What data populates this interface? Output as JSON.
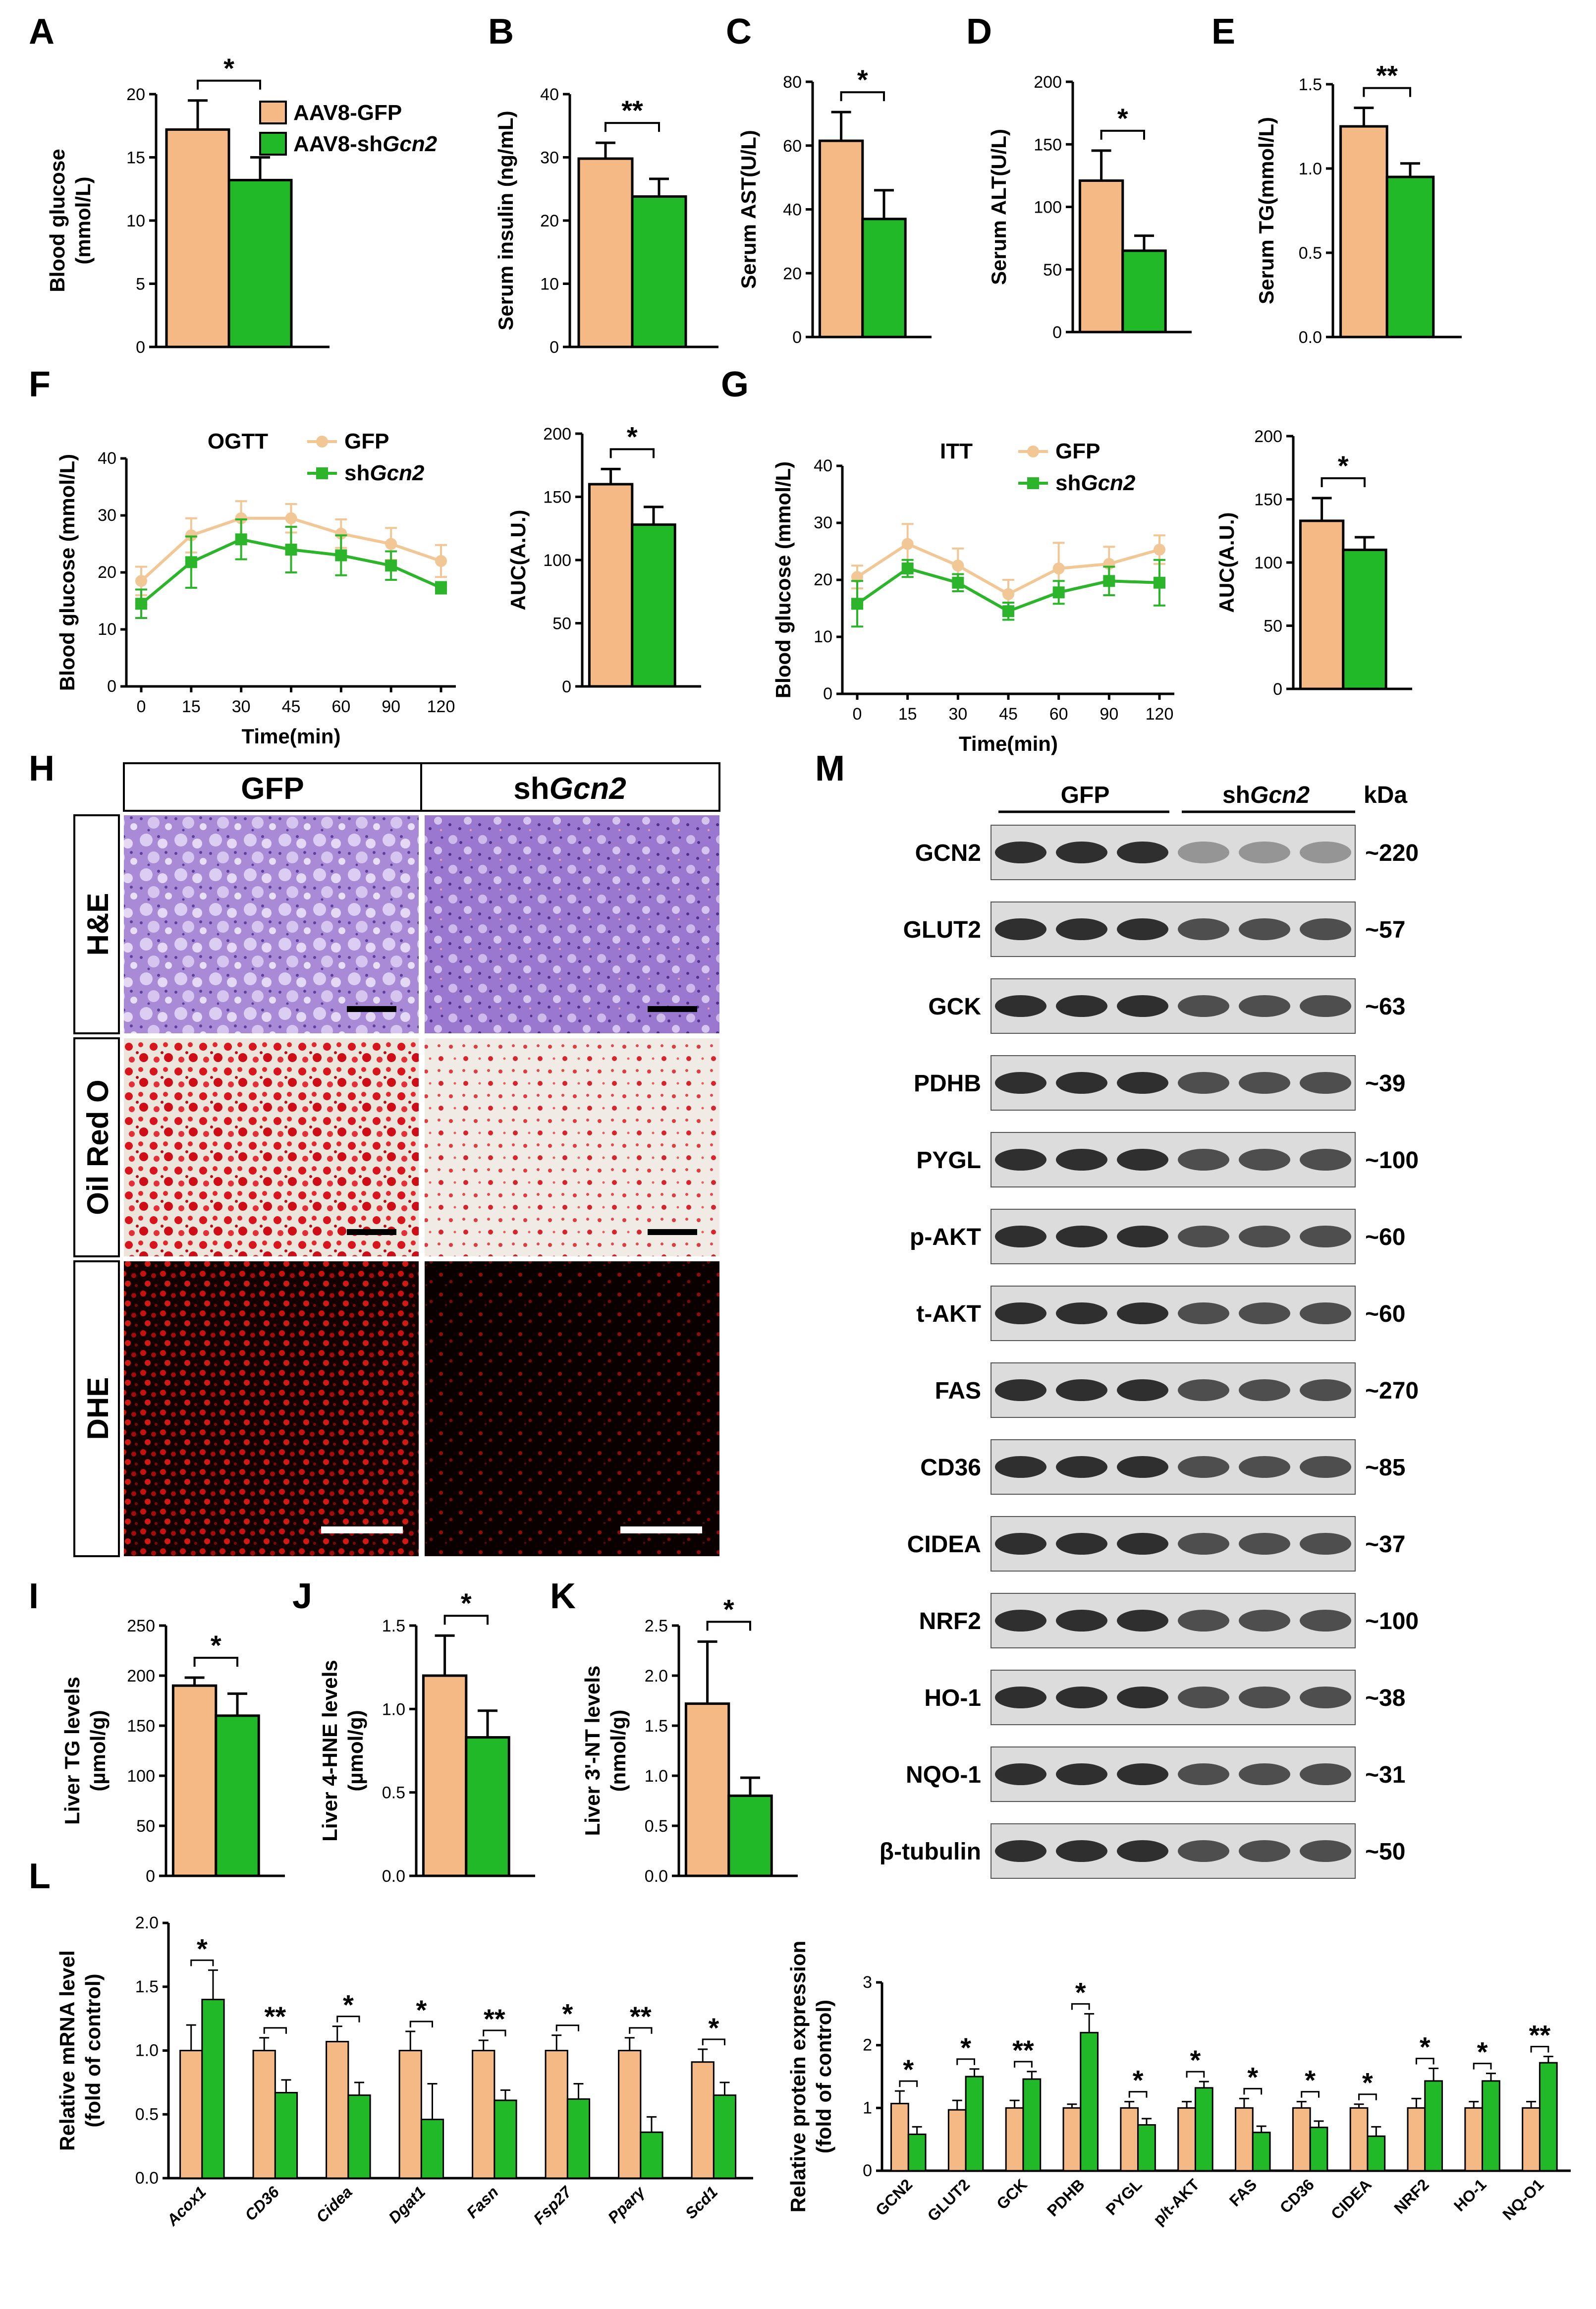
{
  "panel_labels": [
    "A",
    "B",
    "C",
    "D",
    "E",
    "F",
    "G",
    "H",
    "I",
    "J",
    "K",
    "L",
    "M"
  ],
  "colors": {
    "gfp": "#f5b985",
    "gfp_line": "#f1c795",
    "sh": "#21b927",
    "sh_line": "#2cb52a",
    "edge": "#000000"
  },
  "legend": {
    "gfp": "AAV8-GFP",
    "sh_prefix": "AAV8-sh",
    "sh_gene": "Gcn2"
  },
  "line_legend": {
    "gfp": "GFP",
    "sh_prefix": "sh",
    "sh_gene": "Gcn2"
  },
  "bars": [
    {
      "id": "A",
      "ylabel": [
        "Blood glucose",
        "(mmol/L)"
      ],
      "ylim": [
        0,
        20
      ],
      "ticks": [
        "0",
        "5",
        "10",
        "15",
        "20"
      ],
      "values": [
        17.2,
        13.2
      ],
      "errors": [
        2.3,
        1.8
      ],
      "sig": "*"
    },
    {
      "id": "B",
      "ylabel": [
        "Serum insulin (ng/mL)"
      ],
      "ylim": [
        0,
        40
      ],
      "ticks": [
        "0",
        "10",
        "20",
        "30",
        "40"
      ],
      "values": [
        29.8,
        23.8
      ],
      "errors": [
        2.5,
        2.8
      ],
      "sig": "**"
    },
    {
      "id": "C",
      "ylabel": [
        "Serum AST(U/L)"
      ],
      "ylim": [
        0,
        80
      ],
      "ticks": [
        "0",
        "20",
        "40",
        "60",
        "80"
      ],
      "values": [
        61.5,
        37.0
      ],
      "errors": [
        9.0,
        9.0
      ],
      "sig": "*"
    },
    {
      "id": "D",
      "ylabel": [
        "Serum ALT(U/L)"
      ],
      "ylim": [
        0,
        200
      ],
      "ticks": [
        "0",
        "50",
        "100",
        "150",
        "200"
      ],
      "values": [
        121,
        65
      ],
      "errors": [
        24,
        12
      ],
      "sig": "*"
    },
    {
      "id": "E",
      "ylabel": [
        "Serum TG(mmol/L)"
      ],
      "ylim": [
        0,
        1.5
      ],
      "ticks": [
        "0.0",
        "0.5",
        "1.0",
        "1.5"
      ],
      "values": [
        1.25,
        0.95
      ],
      "errors": [
        0.11,
        0.08
      ],
      "sig": "**"
    },
    {
      "id": "F-AUC",
      "ylabel": [
        "AUC(A.U.)"
      ],
      "ylim": [
        0,
        200
      ],
      "ticks": [
        "0",
        "50",
        "100",
        "150",
        "200"
      ],
      "values": [
        160,
        128
      ],
      "errors": [
        12,
        14
      ],
      "sig": "*"
    },
    {
      "id": "G-AUC",
      "ylabel": [
        "AUC(A.U.)"
      ],
      "ylim": [
        0,
        200
      ],
      "ticks": [
        "0",
        "50",
        "100",
        "150",
        "200"
      ],
      "values": [
        133,
        110
      ],
      "errors": [
        18,
        10
      ],
      "sig": "*"
    },
    {
      "id": "I",
      "ylabel": [
        "Liver TG levels",
        "(µmol/g)"
      ],
      "ylim": [
        0,
        250
      ],
      "ticks": [
        "0",
        "50",
        "100",
        "150",
        "200",
        "250"
      ],
      "values": [
        190,
        160
      ],
      "errors": [
        8,
        22
      ],
      "sig": "*"
    },
    {
      "id": "J",
      "ylabel": [
        "Liver 4-HNE levels",
        "(µmol/g)"
      ],
      "ylim": [
        0,
        1.5
      ],
      "ticks": [
        "0.0",
        "0.5",
        "1.0",
        "1.5"
      ],
      "values": [
        1.2,
        0.83
      ],
      "errors": [
        0.24,
        0.16
      ],
      "sig": "*"
    },
    {
      "id": "K",
      "ylabel": [
        "Liver 3'-NT levels",
        "(nmol/g)"
      ],
      "ylim": [
        0,
        2.5
      ],
      "ticks": [
        "0.0",
        "0.5",
        "1.0",
        "1.5",
        "2.0",
        "2.5"
      ],
      "values": [
        1.72,
        0.8
      ],
      "errors": [
        0.62,
        0.18
      ],
      "sig": "*"
    }
  ],
  "lines": [
    {
      "id": "F",
      "title": "OGTT",
      "ylabel": "Blood glucose (mmol/L)",
      "xlabel": "Time(min)",
      "x": [
        0,
        15,
        30,
        45,
        60,
        90,
        120
      ],
      "ylim": [
        0,
        40
      ],
      "yticks": [
        "0",
        "10",
        "20",
        "30",
        "40"
      ],
      "gfp": [
        18.5,
        26.5,
        29.5,
        29.5,
        26.8,
        25.0,
        22.0
      ],
      "gfp_err": [
        2.5,
        3.0,
        3.0,
        2.5,
        2.5,
        2.8,
        2.8
      ],
      "sh": [
        14.5,
        21.8,
        25.8,
        24.0,
        23.0,
        21.2,
        17.3
      ],
      "sh_err": [
        2.5,
        4.5,
        3.5,
        4.0,
        3.5,
        2.5,
        1.0
      ]
    },
    {
      "id": "G",
      "title": "ITT",
      "ylabel": "Blood glucose (mmol/L)",
      "xlabel": "Time(min)",
      "x": [
        0,
        15,
        30,
        45,
        60,
        90,
        120
      ],
      "ylim": [
        0,
        40
      ],
      "yticks": [
        "0",
        "10",
        "20",
        "30",
        "40"
      ],
      "gfp": [
        20.5,
        26.3,
        22.5,
        17.5,
        22.0,
        22.8,
        25.3
      ],
      "gfp_err": [
        2.0,
        3.5,
        3.0,
        2.5,
        4.5,
        3.0,
        2.5
      ],
      "sh": [
        15.8,
        22.0,
        19.5,
        14.5,
        17.8,
        19.8,
        19.5
      ],
      "sh_err": [
        4.0,
        1.5,
        1.5,
        1.5,
        2.0,
        2.5,
        4.0
      ]
    }
  ],
  "histology": {
    "columns": [
      "GFP",
      "sh"
    ],
    "column2_gene": "Gcn2",
    "rows": [
      "H&E",
      "Oil Red O",
      "DHE"
    ]
  },
  "western": {
    "groups": [
      "GFP",
      "sh"
    ],
    "group2_gene": "Gcn2",
    "unit": "kDa",
    "rows": [
      {
        "label": "GCN2",
        "kda": "~220"
      },
      {
        "label": "GLUT2",
        "kda": "~57"
      },
      {
        "label": "GCK",
        "kda": "~63"
      },
      {
        "label": "PDHB",
        "kda": "~39"
      },
      {
        "label": "PYGL",
        "kda": "~100"
      },
      {
        "label": "p-AKT",
        "kda": "~60"
      },
      {
        "label": "t-AKT",
        "kda": "~60"
      },
      {
        "label": "FAS",
        "kda": "~270"
      },
      {
        "label": "CD36",
        "kda": "~85"
      },
      {
        "label": "CIDEA",
        "kda": "~37"
      },
      {
        "label": "NRF2",
        "kda": "~100"
      },
      {
        "label": "HO-1",
        "kda": "~38"
      },
      {
        "label": "NQO-1",
        "kda": "~31"
      },
      {
        "label": "β-tubulin",
        "kda": "~50"
      }
    ]
  },
  "mrna": {
    "ylabel": [
      "Relative mRNA level",
      "(fold of control)"
    ],
    "ylim": [
      0,
      2.0
    ],
    "ticks": [
      "0.0",
      "0.5",
      "1.0",
      "1.5",
      "2.0"
    ],
    "categories": [
      "Acox1",
      "CD36",
      "Cidea",
      "Dgat1",
      "Fasn",
      "Fsp27",
      "Pparγ",
      "Scd1"
    ],
    "gfp": [
      1.0,
      1.0,
      1.07,
      1.0,
      1.0,
      1.0,
      1.0,
      0.91
    ],
    "gfp_err": [
      0.2,
      0.1,
      0.12,
      0.15,
      0.08,
      0.12,
      0.1,
      0.1
    ],
    "sh": [
      1.4,
      0.67,
      0.65,
      0.46,
      0.61,
      0.62,
      0.36,
      0.65
    ],
    "sh_err": [
      0.23,
      0.1,
      0.1,
      0.28,
      0.08,
      0.12,
      0.12,
      0.1
    ],
    "sig": [
      "*",
      "**",
      "*",
      "*",
      "**",
      "*",
      "**",
      "*"
    ]
  },
  "protein": {
    "ylabel": [
      "Relative protein expression",
      "(fold of control)"
    ],
    "ylim": [
      0,
      3
    ],
    "ticks": [
      "0",
      "1",
      "2",
      "3"
    ],
    "categories": [
      "GCN2",
      "GLUT2",
      "GCK",
      "PDHB",
      "PYGL",
      "p/t-AKT",
      "FAS",
      "CD36",
      "CIDEA",
      "NRF2",
      "HO-1",
      "NQ-O1"
    ],
    "gfp": [
      1.07,
      0.97,
      1.0,
      1.0,
      1.0,
      1.0,
      1.0,
      1.0,
      1.0,
      1.0,
      1.0,
      1.0
    ],
    "gfp_err": [
      0.2,
      0.15,
      0.12,
      0.06,
      0.1,
      0.1,
      0.15,
      0.1,
      0.06,
      0.15,
      0.1,
      0.1
    ],
    "sh": [
      0.58,
      1.5,
      1.46,
      2.2,
      0.73,
      1.32,
      0.61,
      0.69,
      0.55,
      1.43,
      1.43,
      1.72
    ],
    "sh_err": [
      0.12,
      0.12,
      0.12,
      0.3,
      0.1,
      0.1,
      0.1,
      0.1,
      0.15,
      0.2,
      0.12,
      0.1
    ],
    "sig": [
      "*",
      "*",
      "**",
      "*",
      "*",
      "*",
      "*",
      "*",
      "*",
      "*",
      "*",
      "**"
    ]
  }
}
